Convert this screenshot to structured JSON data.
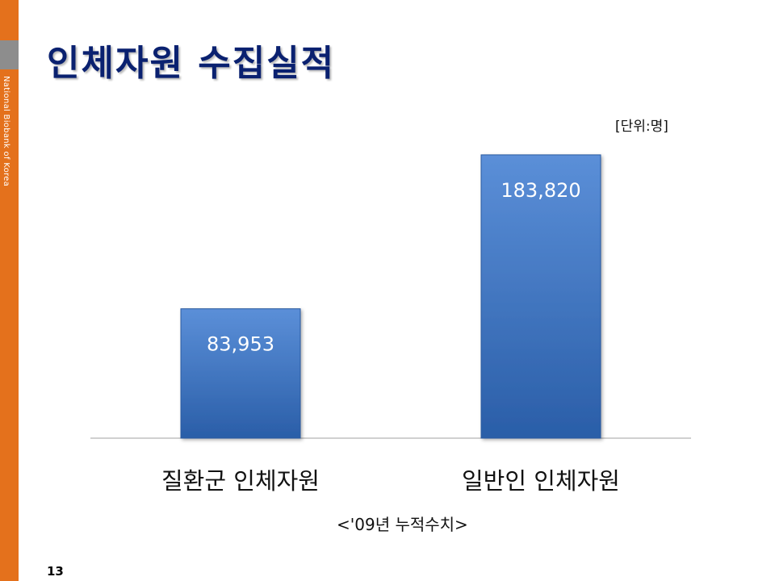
{
  "slide": {
    "title": "인체자원 수집실적",
    "side_text": "National Biobank of Korea",
    "unit_label": "[단위:명]",
    "footnote": "<'09년 누적수치>",
    "page_number": "13"
  },
  "colors": {
    "accent": "#e4711c",
    "side_block": "#8d8d8d",
    "title": "#0a2170",
    "bar_top": "#5b8fd8",
    "bar_bottom": "#2a5ea8",
    "bar_label": "#ffffff"
  },
  "chart_data": {
    "type": "bar",
    "categories": [
      "질환군 인체자원",
      "일반인 인체자원"
    ],
    "values": [
      83953,
      183820
    ],
    "data_labels": [
      "83,953",
      "183,820"
    ],
    "title": "",
    "xlabel": "",
    "ylabel": "",
    "ylim": [
      0,
      200000
    ],
    "grid": false,
    "legend": "none"
  }
}
